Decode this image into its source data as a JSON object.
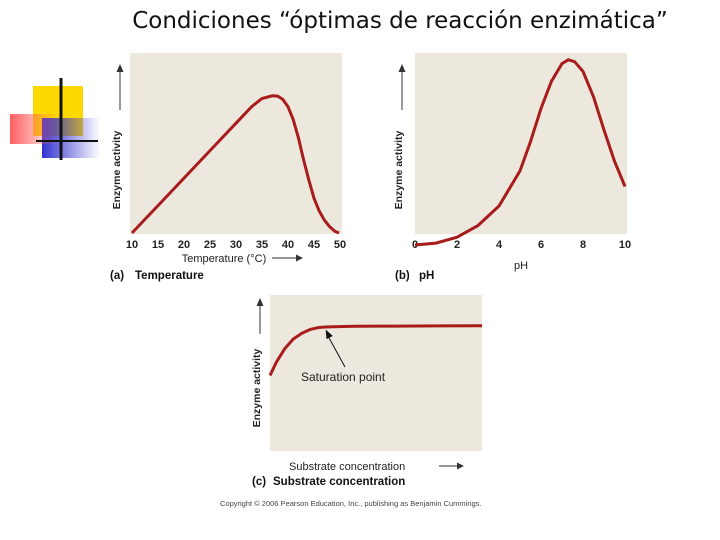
{
  "slide": {
    "title": "Condiciones “óptimas de reacción enzimática”",
    "copyright": "Copyright © 2006 Pearson Education, Inc., publishing as Benjamin Cummings."
  },
  "colors": {
    "curve": "#a81c1c",
    "panel": "#ede8de",
    "text": "#222222"
  },
  "chart_data": [
    {
      "type": "line",
      "panel": "a",
      "caption_letter": "(a)",
      "caption": "Temperature",
      "xlabel": "Temperature (°C)",
      "ylabel": "Enzyme activity",
      "xlim": [
        10,
        50
      ],
      "ylim": [
        0,
        1
      ],
      "ticks": [
        "10",
        "15",
        "20",
        "25",
        "30",
        "35",
        "40",
        "45",
        "50"
      ],
      "series": [
        {
          "name": "activity",
          "x": [
            10,
            12,
            15,
            20,
            25,
            30,
            33,
            35,
            37,
            38,
            39,
            40,
            41,
            42,
            43,
            44,
            45,
            46,
            47,
            48,
            49,
            49.8
          ],
          "y": [
            0,
            0.06,
            0.15,
            0.3,
            0.45,
            0.6,
            0.69,
            0.735,
            0.75,
            0.748,
            0.73,
            0.69,
            0.62,
            0.52,
            0.4,
            0.29,
            0.19,
            0.12,
            0.07,
            0.035,
            0.01,
            0
          ]
        }
      ]
    },
    {
      "type": "line",
      "panel": "b",
      "caption_letter": "(b)",
      "caption": "pH",
      "xlabel": "pH",
      "ylabel": "Enzyme activity",
      "xlim": [
        0,
        10
      ],
      "ylim": [
        0,
        1
      ],
      "ticks": [
        "0",
        "2",
        "4",
        "6",
        "8",
        "10"
      ],
      "series": [
        {
          "name": "activity",
          "x": [
            0,
            1,
            2,
            3,
            4,
            5,
            5.5,
            6,
            6.5,
            7,
            7.3,
            7.6,
            8,
            8.5,
            9,
            9.5,
            10
          ],
          "y": [
            0,
            0.01,
            0.04,
            0.1,
            0.2,
            0.38,
            0.53,
            0.7,
            0.84,
            0.93,
            0.95,
            0.94,
            0.89,
            0.76,
            0.59,
            0.43,
            0.3
          ]
        }
      ]
    },
    {
      "type": "line",
      "panel": "c",
      "caption_letter": "(c)",
      "caption": "Substrate concentration",
      "xlabel": "Substrate concentration",
      "ylabel": "Enzyme activity",
      "xlim": [
        0,
        10
      ],
      "ylim": [
        0,
        1
      ],
      "ticks": [],
      "annotation": "Saturation point",
      "annotation_target": [
        2.6,
        0.88
      ],
      "series": [
        {
          "name": "activity",
          "x": [
            0,
            0.3,
            0.7,
            1.1,
            1.5,
            1.9,
            2.3,
            2.6,
            3.2,
            4,
            6,
            8,
            10
          ],
          "y": [
            0.38,
            0.52,
            0.66,
            0.76,
            0.82,
            0.86,
            0.88,
            0.885,
            0.89,
            0.893,
            0.895,
            0.897,
            0.898
          ]
        }
      ]
    }
  ]
}
